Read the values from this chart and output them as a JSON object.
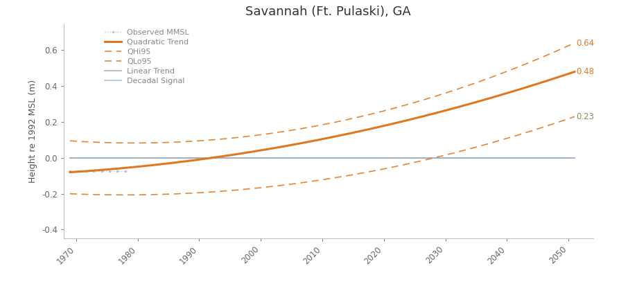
{
  "title": "Savannah (Ft. Pulaski), GA",
  "ylabel": "Height re 1992 MSL (m)",
  "xlim": [
    1968,
    2054
  ],
  "ylim": [
    -0.45,
    0.75
  ],
  "yticks": [
    -0.4,
    -0.2,
    0.0,
    0.2,
    0.4,
    0.6
  ],
  "xticks": [
    1970,
    1980,
    1990,
    2000,
    2010,
    2020,
    2030,
    2040,
    2050
  ],
  "year_start": 1969,
  "year_end": 2051,
  "label_qhi": "0.64",
  "label_quad": "0.48",
  "label_qlo": "0.23",
  "color_orange": "#E07820",
  "color_obs": "#AABFD8",
  "color_linear": "#AAAА88",
  "color_decadal": "#8BAAC8",
  "color_label_qhi": "#E07820",
  "color_label_quad": "#E07820",
  "color_label_qlo": "#8A8A60",
  "bg_color": "#FFFFFF",
  "legend_labels": [
    "Observed MMSL",
    "Quadratic Trend",
    "QHi95",
    "QLo95",
    "Linear Trend",
    "Decadal Signal"
  ],
  "title_fontsize": 13,
  "label_fontsize": 9,
  "tick_fontsize": 8.5
}
